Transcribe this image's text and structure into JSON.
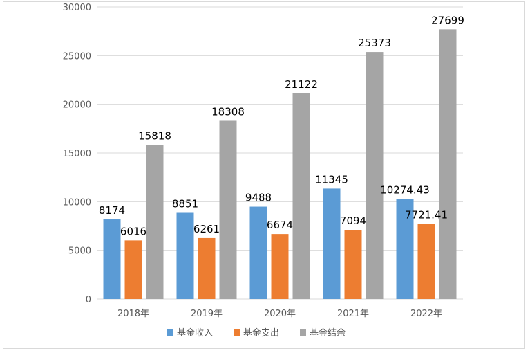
{
  "chart_data": {
    "type": "bar",
    "title": "",
    "xlabel": "",
    "ylabel": "",
    "categories": [
      "2018年",
      "2019年",
      "2020年",
      "2021年",
      "2022年"
    ],
    "series": [
      {
        "name": "基金收入",
        "color": "#5b9bd5",
        "values": [
          8174,
          8851,
          9488,
          11345,
          10274.43
        ],
        "labels": [
          "8174",
          "8851",
          "9488",
          "11345",
          "10274.43"
        ]
      },
      {
        "name": "基金支出",
        "color": "#ed7d31",
        "values": [
          6016,
          6261,
          6674,
          7094,
          7721.41
        ],
        "labels": [
          "6016",
          "6261",
          "6674",
          "7094",
          "7721.41"
        ]
      },
      {
        "name": "基金结余",
        "color": "#a5a5a5",
        "values": [
          15818,
          18308,
          21122,
          25373,
          27699
        ],
        "labels": [
          "15818",
          "18308",
          "21122",
          "25373",
          "27699"
        ]
      }
    ],
    "ylim": [
      0,
      30000
    ],
    "yticks": [
      0,
      5000,
      10000,
      15000,
      20000,
      25000,
      30000
    ],
    "grid": true,
    "legend_position": "bottom"
  }
}
